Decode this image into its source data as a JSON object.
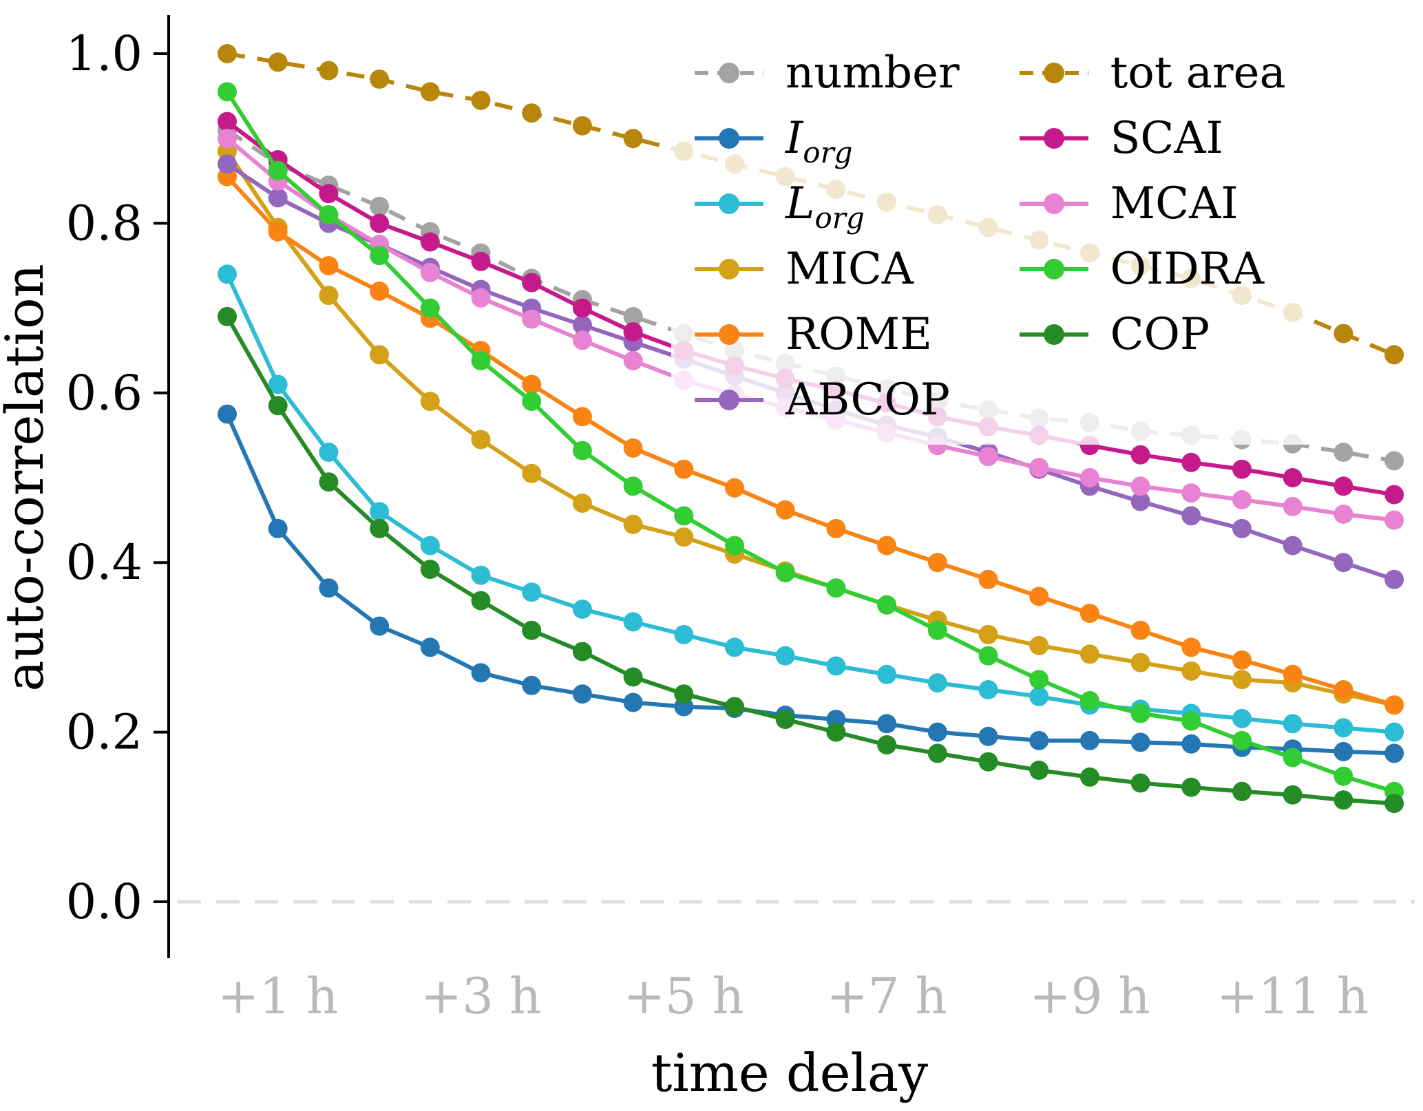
{
  "figure": {
    "background": "#ffffff",
    "x_tick_label_color": "#b9b9b9",
    "y_tick_label_color": "#000000",
    "zero_line_color": "#dedede",
    "spine_color": "#000000"
  },
  "chart_data": {
    "type": "line",
    "title": "",
    "xlabel": "time delay",
    "ylabel": "auto-correlation",
    "x_unit": "hours",
    "grid": false,
    "zero_reference_line": 0.0,
    "xlim": [
      0,
      12.6
    ],
    "ylim": [
      -0.08,
      1.05
    ],
    "x_hours": [
      0.5,
      1.0,
      1.5,
      2.0,
      2.5,
      3.0,
      3.5,
      4.0,
      4.5,
      5.0,
      5.5,
      6.0,
      6.5,
      7.0,
      7.5,
      8.0,
      8.5,
      9.0,
      9.5,
      10.0,
      10.5,
      11.0,
      11.5,
      12.0
    ],
    "x_ticks": [
      {
        "value": 1,
        "label": "+1 h"
      },
      {
        "value": 3,
        "label": "+3 h"
      },
      {
        "value": 5,
        "label": "+5 h"
      },
      {
        "value": 7,
        "label": "+7 h"
      },
      {
        "value": 9,
        "label": "+9 h"
      },
      {
        "value": 11,
        "label": "+11 h"
      }
    ],
    "y_ticks": [
      {
        "value": 1.0,
        "label": "1.0"
      },
      {
        "value": 0.8,
        "label": "0.8"
      },
      {
        "value": 0.6,
        "label": "0.6"
      },
      {
        "value": 0.4,
        "label": "0.4"
      },
      {
        "value": 0.2,
        "label": "0.2"
      },
      {
        "value": 0.0,
        "label": "0.0"
      }
    ],
    "legend": {
      "position": "upper right",
      "frame_alpha": 0.8,
      "columns": [
        [
          "number",
          "I_org",
          "L_org",
          "MICA",
          "ROME",
          "ABCOP"
        ],
        [
          "tot_area",
          "SCAI",
          "MCAI",
          "OIDRA",
          "COP"
        ]
      ]
    },
    "series": [
      {
        "key": "number",
        "name": "number",
        "color": "#a3a3a3",
        "dashed": true,
        "legend": {
          "text": "number"
        },
        "values": [
          0.91,
          0.87,
          0.845,
          0.82,
          0.79,
          0.765,
          0.735,
          0.71,
          0.69,
          0.67,
          0.65,
          0.635,
          0.62,
          0.605,
          0.59,
          0.58,
          0.57,
          0.565,
          0.555,
          0.55,
          0.545,
          0.54,
          0.53,
          0.52
        ]
      },
      {
        "key": "tot_area",
        "name": "tot area",
        "color": "#b8860b",
        "dashed": true,
        "legend": {
          "text": "tot area"
        },
        "values": [
          1.0,
          0.99,
          0.98,
          0.97,
          0.955,
          0.945,
          0.93,
          0.915,
          0.9,
          0.885,
          0.87,
          0.855,
          0.84,
          0.825,
          0.81,
          0.795,
          0.78,
          0.765,
          0.75,
          0.735,
          0.715,
          0.695,
          0.67,
          0.645
        ]
      },
      {
        "key": "I_org",
        "name": "I_org",
        "color": "#2577b4",
        "dashed": false,
        "legend": {
          "text": "I",
          "sub": "org",
          "italic": true
        },
        "values": [
          0.575,
          0.44,
          0.37,
          0.325,
          0.3,
          0.27,
          0.255,
          0.245,
          0.235,
          0.23,
          0.228,
          0.22,
          0.215,
          0.21,
          0.2,
          0.195,
          0.19,
          0.19,
          0.188,
          0.186,
          0.182,
          0.18,
          0.177,
          0.175
        ]
      },
      {
        "key": "L_org",
        "name": "L_org",
        "color": "#2cbcd4",
        "dashed": false,
        "legend": {
          "text": "L",
          "sub": "org",
          "italic": true
        },
        "values": [
          0.74,
          0.61,
          0.53,
          0.46,
          0.42,
          0.385,
          0.365,
          0.345,
          0.33,
          0.315,
          0.3,
          0.29,
          0.278,
          0.268,
          0.258,
          0.25,
          0.242,
          0.232,
          0.227,
          0.222,
          0.216,
          0.21,
          0.205,
          0.2
        ]
      },
      {
        "key": "MICA",
        "name": "MICA",
        "color": "#d4a017",
        "dashed": false,
        "legend": {
          "text": "MICA"
        },
        "values": [
          0.885,
          0.795,
          0.715,
          0.645,
          0.59,
          0.545,
          0.505,
          0.47,
          0.445,
          0.43,
          0.41,
          0.39,
          0.37,
          0.35,
          0.332,
          0.315,
          0.302,
          0.292,
          0.282,
          0.272,
          0.262,
          0.258,
          0.245,
          0.232
        ]
      },
      {
        "key": "ROME",
        "name": "ROME",
        "color": "#f98414",
        "dashed": false,
        "legend": {
          "text": "ROME"
        },
        "values": [
          0.855,
          0.79,
          0.75,
          0.72,
          0.688,
          0.65,
          0.61,
          0.572,
          0.535,
          0.51,
          0.488,
          0.462,
          0.44,
          0.42,
          0.4,
          0.38,
          0.36,
          0.34,
          0.32,
          0.3,
          0.285,
          0.268,
          0.25,
          0.232
        ]
      },
      {
        "key": "ABCOP",
        "name": "ABCOP",
        "color": "#9467bd",
        "dashed": false,
        "legend": {
          "text": "ABCOP"
        },
        "values": [
          0.87,
          0.83,
          0.8,
          0.775,
          0.748,
          0.722,
          0.7,
          0.68,
          0.66,
          0.64,
          0.62,
          0.6,
          0.58,
          0.562,
          0.548,
          0.53,
          0.51,
          0.49,
          0.472,
          0.455,
          0.44,
          0.42,
          0.4,
          0.38
        ]
      },
      {
        "key": "SCAI",
        "name": "SCAI",
        "color": "#c51b8a",
        "dashed": false,
        "legend": {
          "text": "SCAI"
        },
        "values": [
          0.92,
          0.875,
          0.835,
          0.8,
          0.778,
          0.755,
          0.73,
          0.7,
          0.672,
          0.65,
          0.632,
          0.617,
          0.603,
          0.588,
          0.572,
          0.56,
          0.55,
          0.538,
          0.527,
          0.518,
          0.51,
          0.5,
          0.49,
          0.48
        ]
      },
      {
        "key": "MCAI",
        "name": "MCAI",
        "color": "#e783d2",
        "dashed": false,
        "legend": {
          "text": "MCAI"
        },
        "values": [
          0.9,
          0.85,
          0.81,
          0.775,
          0.742,
          0.712,
          0.687,
          0.662,
          0.638,
          0.615,
          0.598,
          0.583,
          0.568,
          0.553,
          0.538,
          0.525,
          0.512,
          0.5,
          0.49,
          0.482,
          0.474,
          0.466,
          0.457,
          0.45
        ]
      },
      {
        "key": "OIDRA",
        "name": "OIDRA",
        "color": "#32cd32",
        "dashed": false,
        "legend": {
          "text": "OIDRA"
        },
        "values": [
          0.955,
          0.862,
          0.81,
          0.762,
          0.7,
          0.638,
          0.59,
          0.532,
          0.49,
          0.455,
          0.42,
          0.388,
          0.37,
          0.35,
          0.32,
          0.29,
          0.262,
          0.237,
          0.222,
          0.213,
          0.19,
          0.17,
          0.148,
          0.13
        ]
      },
      {
        "key": "COP",
        "name": "COP",
        "color": "#258b25",
        "dashed": false,
        "legend": {
          "text": "COP"
        },
        "values": [
          0.69,
          0.585,
          0.495,
          0.44,
          0.392,
          0.355,
          0.32,
          0.295,
          0.265,
          0.245,
          0.23,
          0.215,
          0.2,
          0.185,
          0.175,
          0.165,
          0.155,
          0.147,
          0.14,
          0.135,
          0.13,
          0.126,
          0.12,
          0.116
        ]
      }
    ]
  }
}
